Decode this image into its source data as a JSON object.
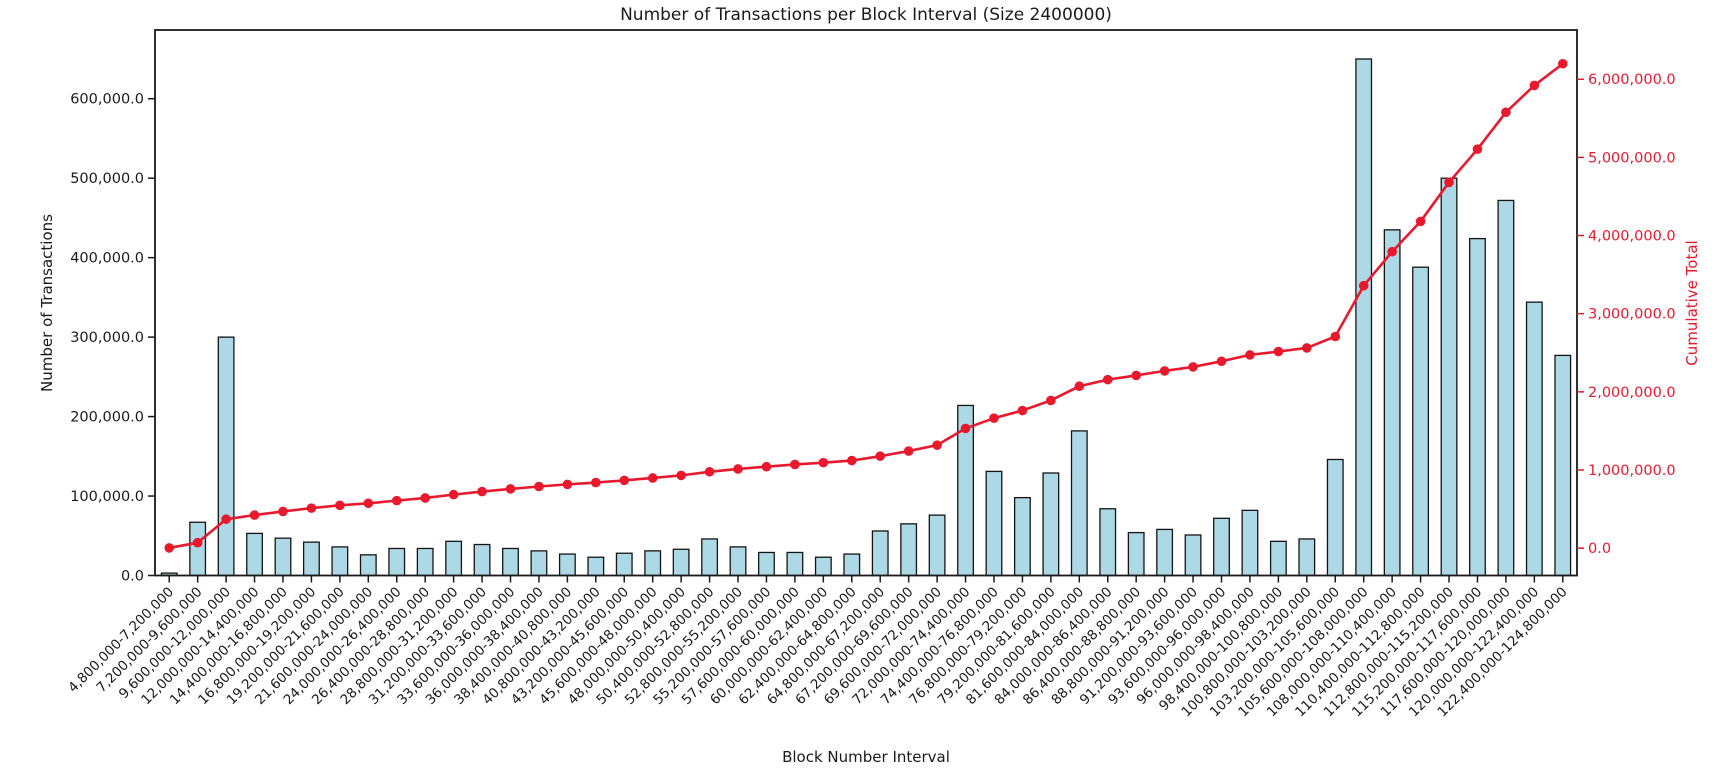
{
  "chart_data": {
    "type": "bar",
    "title": "Number of Transactions per Block Interval (Size 2400000)",
    "xlabel": "Block Number Interval",
    "ylabel_left": "Number of Transactions",
    "ylabel_right": "Cumulative Total",
    "categories": [
      "4,800,000-7,200,000",
      "7,200,000-9,600,000",
      "9,600,000-12,000,000",
      "12,000,000-14,400,000",
      "14,400,000-16,800,000",
      "16,800,000-19,200,000",
      "19,200,000-21,600,000",
      "21,600,000-24,000,000",
      "24,000,000-26,400,000",
      "26,400,000-28,800,000",
      "28,800,000-31,200,000",
      "31,200,000-33,600,000",
      "33,600,000-36,000,000",
      "36,000,000-38,400,000",
      "38,400,000-40,800,000",
      "40,800,000-43,200,000",
      "43,200,000-45,600,000",
      "45,600,000-48,000,000",
      "48,000,000-50,400,000",
      "50,400,000-52,800,000",
      "52,800,000-55,200,000",
      "55,200,000-57,600,000",
      "57,600,000-60,000,000",
      "60,000,000-62,400,000",
      "62,400,000-64,800,000",
      "64,800,000-67,200,000",
      "67,200,000-69,600,000",
      "69,600,000-72,000,000",
      "72,000,000-74,400,000",
      "74,400,000-76,800,000",
      "76,800,000-79,200,000",
      "79,200,000-81,600,000",
      "81,600,000-84,000,000",
      "84,000,000-86,400,000",
      "86,400,000-88,800,000",
      "88,800,000-91,200,000",
      "91,200,000-93,600,000",
      "93,600,000-96,000,000",
      "96,000,000-98,400,000",
      "98,400,000-100,800,000",
      "100,800,000-103,200,000",
      "103,200,000-105,600,000",
      "105,600,000-108,000,000",
      "108,000,000-110,400,000",
      "110,400,000-112,800,000",
      "112,800,000-115,200,000",
      "115,200,000-117,600,000",
      "117,600,000-120,000,000",
      "120,000,000-122,400,000",
      "122,400,000-124,800,000"
    ],
    "series": [
      {
        "name": "Number of Transactions",
        "axis": "left",
        "values": [
          3000,
          67000,
          300000,
          53000,
          47000,
          42000,
          36000,
          26000,
          34000,
          34000,
          43000,
          39000,
          34000,
          31000,
          27000,
          23000,
          28000,
          31000,
          33000,
          46000,
          36000,
          29000,
          29000,
          23000,
          27000,
          56000,
          65000,
          76000,
          214000,
          131000,
          98000,
          129000,
          182000,
          84000,
          54000,
          58000,
          51000,
          72000,
          82000,
          43000,
          46000,
          146000,
          650000,
          435000,
          388000,
          500000,
          424000,
          472000,
          344000,
          277000
        ]
      },
      {
        "name": "Cumulative Total",
        "axis": "right",
        "values": [
          3000,
          70000,
          370000,
          423000,
          470000,
          512000,
          548000,
          574000,
          608000,
          642000,
          685000,
          724000,
          758000,
          789000,
          816000,
          839000,
          867000,
          898000,
          931000,
          977000,
          1013000,
          1042000,
          1071000,
          1094000,
          1121000,
          1177000,
          1242000,
          1318000,
          1532000,
          1663000,
          1761000,
          1890000,
          2072000,
          2156000,
          2210000,
          2268000,
          2319000,
          2391000,
          2473000,
          2516000,
          2562000,
          2708000,
          3358000,
          3793000,
          4181000,
          4681000,
          5105000,
          5577000,
          5921000,
          6198000
        ]
      }
    ],
    "y_left_ticks": [
      {
        "value": 0,
        "label": "0.0"
      },
      {
        "value": 100000,
        "label": "100,000.0"
      },
      {
        "value": 200000,
        "label": "200,000.0"
      },
      {
        "value": 300000,
        "label": "300,000.0"
      },
      {
        "value": 400000,
        "label": "400,000.0"
      },
      {
        "value": 500000,
        "label": "500,000.0"
      },
      {
        "value": 600000,
        "label": "600,000.0"
      }
    ],
    "y_right_ticks": [
      {
        "value": 0,
        "label": "0.0"
      },
      {
        "value": 1000000,
        "label": "1,000,000.0"
      },
      {
        "value": 2000000,
        "label": "2,000,000.0"
      },
      {
        "value": 3000000,
        "label": "3,000,000.0"
      },
      {
        "value": 4000000,
        "label": "4,000,000.0"
      },
      {
        "value": 5000000,
        "label": "5,000,000.0"
      },
      {
        "value": 6000000,
        "label": "6,000,000.0"
      }
    ],
    "ylim_left": [
      0,
      686500
    ],
    "ylim_right": [
      -350000,
      6630000
    ],
    "grid": false,
    "legend_position": "none",
    "colors": {
      "bar_fill": "#ADD8E6",
      "bar_edge": "#141414",
      "line": "#e8192d",
      "right_axis_text": "#e8192d",
      "axis_text": "#1a1a1a",
      "spine": "#1a1a1a",
      "background": "#ffffff"
    }
  }
}
